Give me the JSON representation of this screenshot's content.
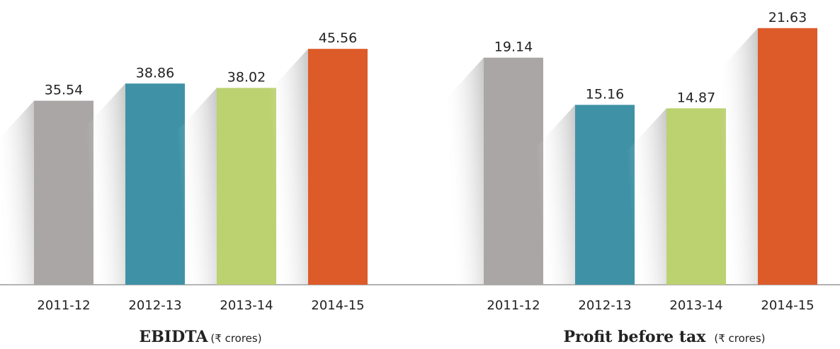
{
  "chart_data": [
    {
      "type": "bar",
      "title": "EBIDTA",
      "unit": "(₹ crores)",
      "categories": [
        "2011-12",
        "2012-13",
        "2013-14",
        "2014-15"
      ],
      "values": [
        35.54,
        38.86,
        38.02,
        45.56
      ],
      "colors": [
        "#aaa6a5",
        "#3f92a6",
        "#bcd170",
        "#dd5a29"
      ],
      "ylim": [
        0,
        55
      ]
    },
    {
      "type": "bar",
      "title": "Profit before tax",
      "unit": "(₹ crores)",
      "categories": [
        "2011-12",
        "2012-13",
        "2013-14",
        "2014-15"
      ],
      "values": [
        19.14,
        15.16,
        14.87,
        21.63
      ],
      "colors": [
        "#aaa6a5",
        "#3f92a6",
        "#bcd170",
        "#dd5a29"
      ],
      "ylim": [
        0,
        24
      ]
    }
  ]
}
